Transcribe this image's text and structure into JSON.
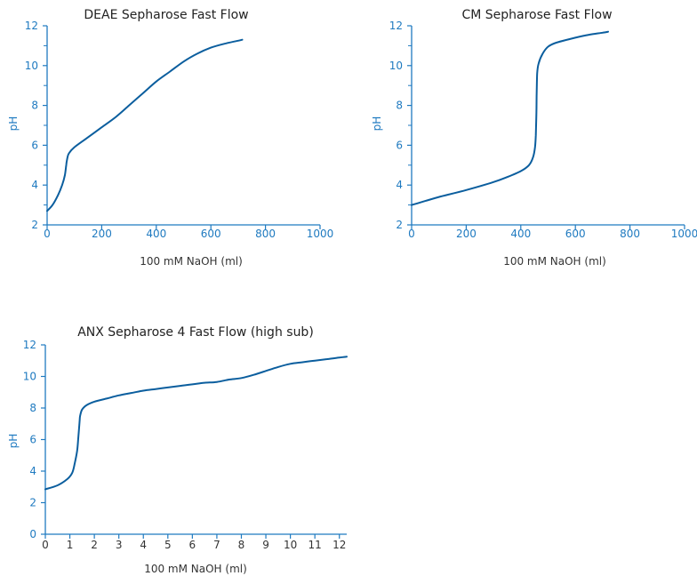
{
  "colors": {
    "axis": "#1f7ac0",
    "curve": "#0b5e9e",
    "title": "#222222",
    "label_blue": "#1f7ac0",
    "label_dark": "#333333"
  },
  "chart_data": [
    {
      "type": "line",
      "title": "DEAE Sepharose Fast Flow",
      "xlabel": "100 mM NaOH (ml)",
      "ylabel": "pH",
      "xlim": [
        0,
        1000
      ],
      "ylim": [
        2,
        12
      ],
      "xticks": [
        0,
        200,
        400,
        600,
        800,
        1000
      ],
      "yticks": [
        2,
        4,
        6,
        8,
        10,
        12
      ],
      "grid": false,
      "series": [
        {
          "x": [
            0,
            20,
            40,
            55,
            65,
            70,
            72,
            75,
            80,
            100,
            150,
            200,
            250,
            300,
            350,
            400,
            450,
            500,
            550,
            600,
            650,
            700,
            715
          ],
          "y": [
            2.7,
            3.0,
            3.5,
            4.0,
            4.5,
            5.0,
            5.2,
            5.4,
            5.6,
            5.9,
            6.4,
            6.9,
            7.4,
            8.0,
            8.6,
            9.2,
            9.7,
            10.2,
            10.6,
            10.9,
            11.1,
            11.25,
            11.3
          ]
        }
      ]
    },
    {
      "type": "line",
      "title": "CM Sepharose Fast Flow",
      "xlabel": "100 mM NaOH (ml)",
      "ylabel": "pH",
      "xlim": [
        0,
        1000
      ],
      "ylim": [
        2,
        12
      ],
      "xticks": [
        0,
        200,
        400,
        600,
        800,
        1000
      ],
      "yticks": [
        2,
        4,
        6,
        8,
        10,
        12
      ],
      "grid": false,
      "series": [
        {
          "x": [
            0,
            50,
            100,
            200,
            300,
            350,
            400,
            430,
            445,
            452,
            455,
            457,
            458,
            460,
            465,
            480,
            500,
            530,
            600,
            650,
            700,
            720
          ],
          "y": [
            3.0,
            3.2,
            3.4,
            3.75,
            4.15,
            4.4,
            4.7,
            5.0,
            5.4,
            5.9,
            6.5,
            7.5,
            8.5,
            9.6,
            10.1,
            10.6,
            10.95,
            11.15,
            11.4,
            11.55,
            11.65,
            11.7
          ]
        }
      ]
    },
    {
      "type": "line",
      "title": "ANX Sepharose 4 Fast Flow (high sub)",
      "xlabel": "100 mM NaOH (ml)",
      "ylabel": "pH",
      "xlim": [
        0,
        12.3
      ],
      "ylim": [
        0,
        12
      ],
      "xticks": [
        0,
        1,
        2,
        3,
        4,
        5,
        6,
        7,
        8,
        9,
        10,
        11,
        12
      ],
      "yticks": [
        0,
        2,
        4,
        6,
        8,
        10,
        12
      ],
      "grid": false,
      "series": [
        {
          "x": [
            0,
            0.5,
            0.9,
            1.1,
            1.2,
            1.3,
            1.35,
            1.4,
            1.42,
            1.5,
            1.7,
            2,
            2.5,
            3,
            3.5,
            4,
            4.5,
            5,
            5.5,
            6,
            6.5,
            7,
            7.5,
            8,
            8.5,
            9,
            9.5,
            10,
            10.5,
            11,
            11.5,
            12,
            12.3
          ],
          "y": [
            2.85,
            3.1,
            3.5,
            3.9,
            4.5,
            5.3,
            6.2,
            7.2,
            7.5,
            7.9,
            8.2,
            8.4,
            8.6,
            8.8,
            8.95,
            9.1,
            9.2,
            9.3,
            9.4,
            9.5,
            9.6,
            9.65,
            9.8,
            9.9,
            10.1,
            10.35,
            10.6,
            10.8,
            10.9,
            11.0,
            11.1,
            11.2,
            11.25
          ]
        }
      ]
    }
  ]
}
